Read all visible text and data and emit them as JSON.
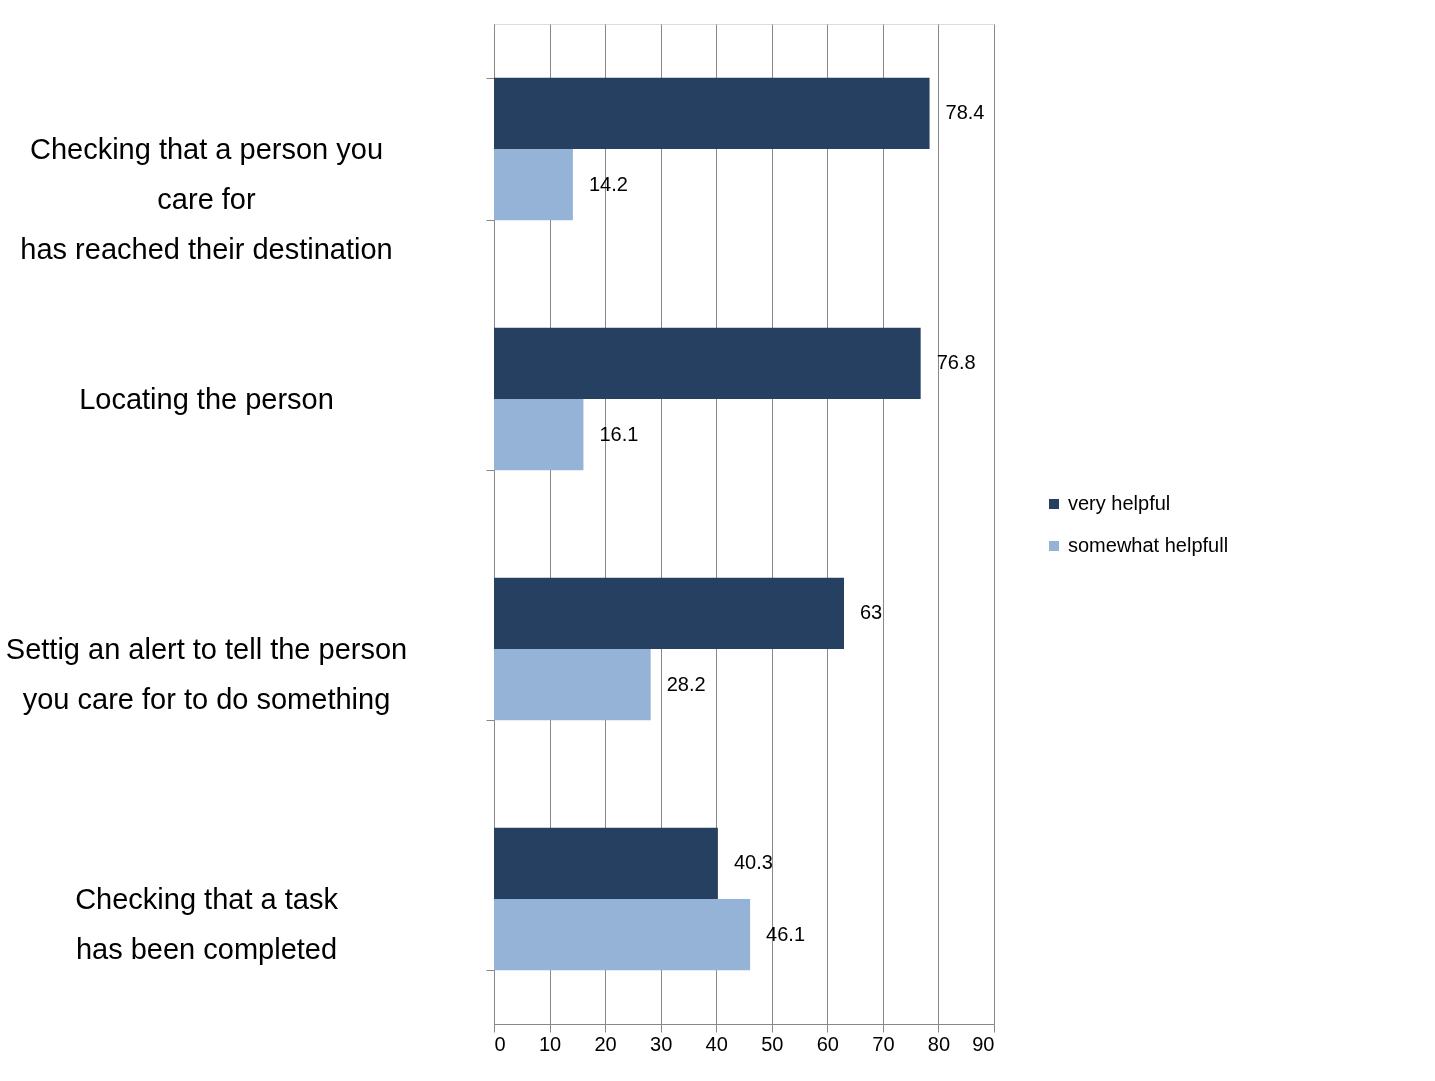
{
  "chart_data": {
    "type": "bar",
    "orientation": "horizontal",
    "categories": [
      "Checking that a person you\ncare for\nhas reached their destination",
      "Locating the person",
      "Settig an alert to tell the person\n\nyou care for to do something",
      "Checking that a task\nhas been completed"
    ],
    "series": [
      {
        "name": "very helpful",
        "color": "#264061",
        "values": [
          78.4,
          76.8,
          63,
          40.3
        ]
      },
      {
        "name": "somewhat helpfull",
        "color": "#95b3d7",
        "values": [
          14.2,
          16.1,
          28.2,
          46.1
        ]
      }
    ],
    "xlim": [
      0,
      90
    ],
    "xticks": [
      0,
      10,
      20,
      30,
      40,
      50,
      60,
      70,
      80,
      90
    ],
    "grid": "x",
    "legend": "right",
    "data_labels": true
  }
}
